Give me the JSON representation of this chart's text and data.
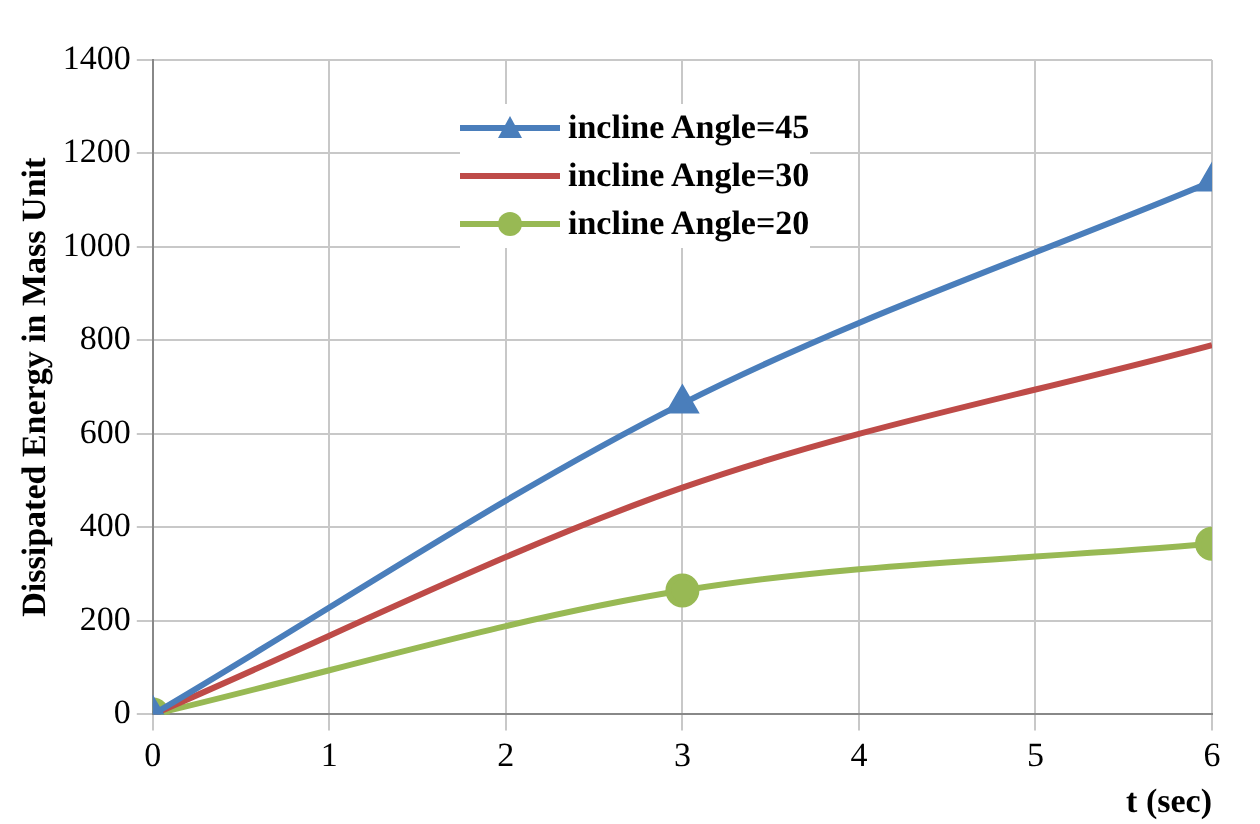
{
  "chart_data": {
    "type": "line",
    "xlabel": "t (sec)",
    "ylabel": "Dissipated Energy in Mass Unit",
    "xlim": [
      0,
      6
    ],
    "xticks": [
      0,
      1,
      2,
      3,
      4,
      5,
      6
    ],
    "ylim": [
      0,
      1400
    ],
    "yticks": [
      0,
      200,
      400,
      600,
      800,
      1000,
      1200,
      1400
    ],
    "grid": true,
    "legend": "top",
    "line_style": "solid",
    "series": [
      {
        "name": "incline Angle=45",
        "color": "#4a7ebb",
        "x": [
          0,
          3,
          6
        ],
        "values": [
          0,
          665,
          1140
        ],
        "marker": "triangle"
      },
      {
        "name": "incline Angle=30",
        "color": "#be4b48",
        "x": [
          0,
          3,
          6
        ],
        "values": [
          0,
          485,
          790
        ],
        "marker": "none"
      },
      {
        "name": "incline Angle=20",
        "color": "#98b954",
        "x": [
          0,
          3,
          6
        ],
        "values": [
          0,
          265,
          365
        ],
        "marker": "circle"
      }
    ]
  }
}
